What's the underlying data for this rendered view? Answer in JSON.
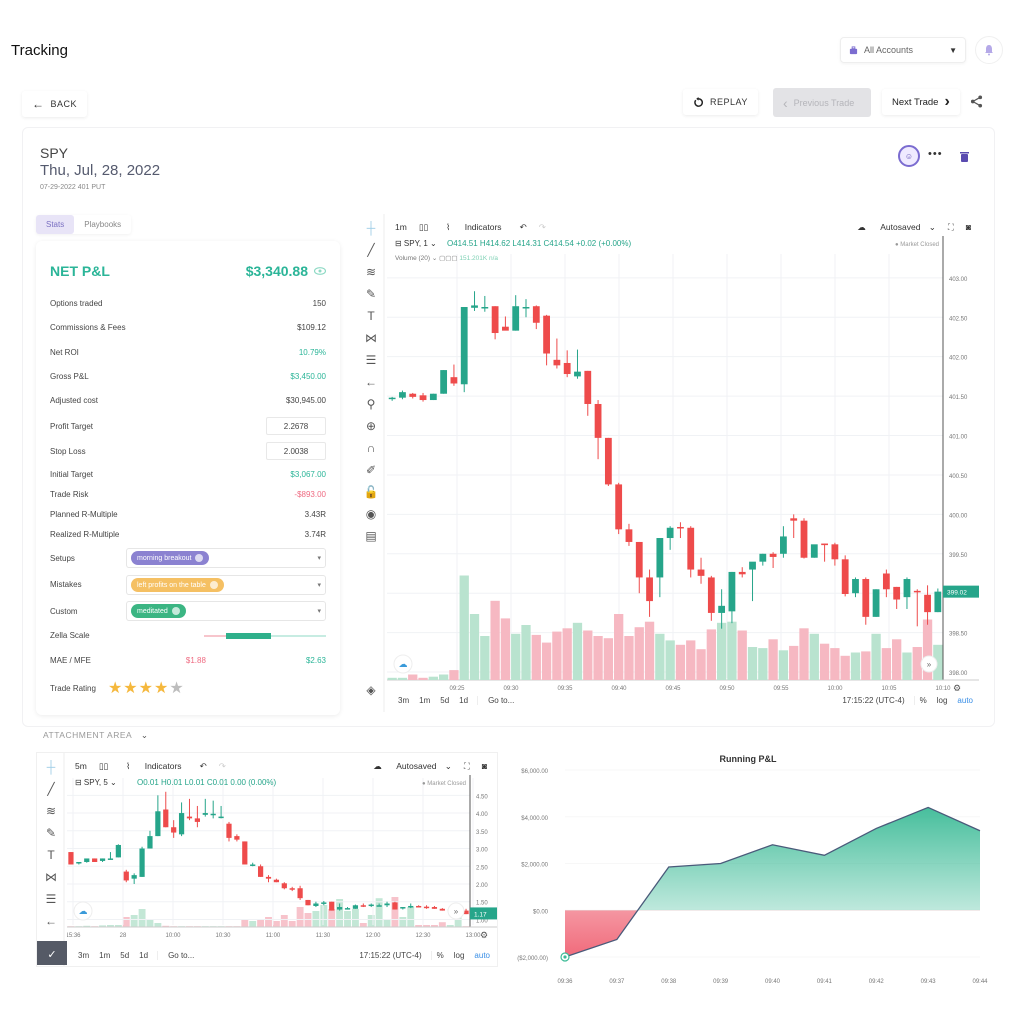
{
  "header": {
    "title": "Tracking",
    "account_select": {
      "value": "All Accounts",
      "icon": "briefcase-icon"
    },
    "notification_icon": "bell-icon"
  },
  "nav": {
    "back_label": "BACK",
    "replay_label": "REPLAY",
    "previous_label": "Previous Trade",
    "next_label": "Next Trade",
    "share_icon": "share-icon"
  },
  "trade": {
    "symbol": "SPY",
    "date": "Thu, Jul, 28, 2022",
    "contract": "07-29-2022 401 PUT"
  },
  "tabs": [
    {
      "label": "Stats",
      "active": true
    },
    {
      "label": "Playbooks",
      "active": false
    }
  ],
  "stats": {
    "net_pl_label": "NET P&L",
    "net_pl_value": "$3,340.88",
    "rows": [
      {
        "label": "Options traded",
        "value": "150",
        "tone": ""
      },
      {
        "label": "Commissions & Fees",
        "value": "$109.12",
        "tone": ""
      },
      {
        "label": "Net ROI",
        "value": "10.79%",
        "tone": "pos"
      },
      {
        "label": "Gross P&L",
        "value": "$3,450.00",
        "tone": "pos"
      },
      {
        "label": "Adjusted cost",
        "value": "$30,945.00",
        "tone": ""
      }
    ],
    "profit_target": {
      "label": "Profit Target",
      "value": "2.2678"
    },
    "stop_loss": {
      "label": "Stop Loss",
      "value": "2.0038"
    },
    "rows2": [
      {
        "label": "Initial Target",
        "value": "$3,067.00",
        "tone": "pos"
      },
      {
        "label": "Trade Risk",
        "value": "-$893.00",
        "tone": "neg"
      },
      {
        "label": "Planned R-Multiple",
        "value": "3.43R",
        "tone": ""
      },
      {
        "label": "Realized R-Multiple",
        "value": "3.74R",
        "tone": ""
      }
    ],
    "setups": {
      "label": "Setups",
      "tag": "morning breakout",
      "color": "#8b82d1"
    },
    "mistakes": {
      "label": "Mistakes",
      "tag": "left profits on the table",
      "color": "#f5c063"
    },
    "custom": {
      "label": "Custom",
      "tag": "meditated",
      "color": "#3bb583"
    },
    "zella_scale_label": "Zella Scale",
    "mae_mfe": {
      "label": "MAE / MFE",
      "mae": "$1.88",
      "mfe": "$2.63"
    },
    "trade_rating": {
      "label": "Trade Rating",
      "stars": 4,
      "max": 5
    }
  },
  "main_chart": {
    "interval": "1m",
    "indicators_label": "Indicators",
    "autosaved_label": "Autosaved",
    "legend_symbol": "SPY, 1",
    "ohlc": "O414.51  H414.62  L414.31  C414.54  +0.02 (+0.00%)",
    "volume_label": "Volume (20)",
    "volume_value": "151.201K  n/a",
    "market_status": "Market Closed",
    "price_label": "399.02",
    "y_ticks": [
      "403.00",
      "402.50",
      "402.00",
      "401.50",
      "401.00",
      "400.50",
      "400.00",
      "399.50",
      "399.00",
      "398.50",
      "398.00"
    ],
    "x_ticks": [
      "09:25",
      "09:30",
      "09:35",
      "09:40",
      "09:45",
      "09:50",
      "09:55",
      "10:00",
      "10:05",
      "10:10",
      "10"
    ],
    "ranges": [
      "3m",
      "1m",
      "5d",
      "1d"
    ],
    "goto_label": "Go to...",
    "time": "17:15:22 (UTC-4)",
    "pct": "%",
    "log": "log",
    "auto": "auto",
    "candles": [
      [
        401.47,
        401.49,
        401.44,
        401.48
      ],
      [
        401.48,
        401.57,
        401.46,
        401.55
      ],
      [
        401.53,
        401.54,
        401.47,
        401.49
      ],
      [
        401.51,
        401.54,
        401.43,
        401.45
      ],
      [
        401.45,
        401.53,
        401.45,
        401.53
      ],
      [
        401.53,
        401.83,
        401.53,
        401.83
      ],
      [
        401.74,
        401.9,
        401.63,
        401.66
      ],
      [
        401.65,
        402.62,
        401.55,
        402.63
      ],
      [
        402.62,
        402.83,
        402.58,
        402.65
      ],
      [
        402.63,
        402.77,
        402.57,
        402.63
      ],
      [
        402.64,
        402.64,
        402.22,
        402.3
      ],
      [
        402.38,
        402.51,
        402.34,
        402.33
      ],
      [
        402.33,
        402.78,
        402.33,
        402.64
      ],
      [
        402.63,
        402.73,
        402.5,
        402.63
      ],
      [
        402.64,
        402.65,
        402.35,
        402.43
      ],
      [
        402.52,
        402.53,
        401.89,
        402.04
      ],
      [
        401.96,
        402.23,
        401.85,
        401.89
      ],
      [
        401.92,
        402.08,
        401.74,
        401.78
      ],
      [
        401.75,
        402.09,
        401.72,
        401.81
      ],
      [
        401.82,
        401.82,
        401.25,
        401.4
      ],
      [
        401.4,
        401.45,
        400.7,
        400.97
      ],
      [
        400.97,
        400.97,
        400.36,
        400.38
      ],
      [
        400.38,
        400.4,
        399.75,
        399.81
      ],
      [
        399.81,
        399.88,
        399.6,
        399.65
      ],
      [
        399.65,
        399.65,
        399.0,
        399.2
      ],
      [
        399.2,
        399.3,
        398.7,
        398.9
      ],
      [
        399.2,
        399.45,
        398.95,
        399.7
      ],
      [
        399.7,
        399.85,
        399.55,
        399.83
      ],
      [
        399.84,
        399.9,
        399.7,
        399.83
      ],
      [
        399.83,
        399.85,
        399.2,
        399.3
      ],
      [
        399.3,
        399.45,
        399.12,
        399.22
      ],
      [
        399.2,
        399.22,
        398.65,
        398.75
      ],
      [
        398.75,
        399.05,
        398.55,
        398.84
      ],
      [
        398.77,
        399.27,
        398.62,
        399.27
      ],
      [
        399.27,
        399.33,
        399.2,
        399.24
      ],
      [
        399.3,
        399.39,
        398.9,
        399.4
      ],
      [
        399.4,
        399.5,
        399.35,
        399.5
      ],
      [
        399.5,
        399.52,
        399.32,
        399.46
      ],
      [
        399.5,
        399.85,
        399.45,
        399.72
      ],
      [
        399.95,
        400.0,
        399.7,
        399.92
      ],
      [
        399.92,
        399.95,
        399.44,
        399.45
      ],
      [
        399.45,
        399.6,
        399.45,
        399.62
      ],
      [
        399.63,
        399.63,
        399.4,
        399.61
      ],
      [
        399.62,
        399.64,
        399.35,
        399.43
      ],
      [
        399.43,
        399.48,
        398.96,
        398.99
      ],
      [
        399.0,
        399.2,
        398.95,
        399.18
      ],
      [
        399.18,
        399.2,
        398.6,
        398.7
      ],
      [
        398.7,
        399.05,
        398.7,
        399.05
      ],
      [
        399.25,
        399.3,
        398.95,
        399.05
      ],
      [
        399.08,
        399.08,
        398.8,
        398.92
      ],
      [
        398.95,
        399.2,
        398.8,
        399.18
      ],
      [
        399.03,
        399.05,
        398.58,
        399.02
      ],
      [
        398.98,
        399.1,
        398.6,
        398.76
      ],
      [
        398.76,
        399.06,
        398.76,
        399.02
      ]
    ],
    "volumes": [
      0.02,
      0.02,
      0.05,
      0.02,
      0.03,
      0.05,
      0.09,
      0.95,
      0.6,
      0.4,
      0.72,
      0.56,
      0.42,
      0.5,
      0.41,
      0.34,
      0.44,
      0.47,
      0.52,
      0.45,
      0.4,
      0.38,
      0.6,
      0.4,
      0.48,
      0.53,
      0.42,
      0.36,
      0.32,
      0.36,
      0.28,
      0.46,
      0.52,
      0.53,
      0.45,
      0.3,
      0.29,
      0.37,
      0.27,
      0.31,
      0.47,
      0.42,
      0.33,
      0.29,
      0.22,
      0.25,
      0.26,
      0.42,
      0.29,
      0.37,
      0.25,
      0.3,
      0.55,
      0.32
    ]
  },
  "attachment": {
    "label": "ATTACHMENT AREA"
  },
  "small_chart": {
    "interval": "5m",
    "indicators_label": "Indicators",
    "autosaved_label": "Autosaved",
    "legend_symbol": "SPY, 5",
    "ohlc": "O0.01  H0.01  L0.01  C0.01  0.00 (0.00%)",
    "market_status": "Market Closed",
    "price_label": "1.17",
    "y_ticks": [
      "4.50",
      "4.00",
      "3.50",
      "3.00",
      "2.50",
      "2.00",
      "1.50",
      "1.00"
    ],
    "x_ticks": [
      "15:36",
      "28",
      "10:00",
      "10:30",
      "11:00",
      "11:30",
      "12:00",
      "12:30",
      "13:00"
    ],
    "ranges": [
      "3m",
      "1m",
      "5d",
      "1d"
    ],
    "goto_label": "Go to...",
    "time": "17:15:22 (UTC-4)",
    "pct": "%",
    "log": "log",
    "auto": "auto",
    "candles": [
      [
        2.9,
        2.9,
        2.55,
        2.55
      ],
      [
        2.6,
        2.6,
        2.55,
        2.62
      ],
      [
        2.62,
        2.7,
        2.6,
        2.72
      ],
      [
        2.72,
        2.72,
        2.62,
        2.62
      ],
      [
        2.65,
        2.72,
        2.62,
        2.72
      ],
      [
        2.72,
        2.9,
        2.7,
        2.72
      ],
      [
        2.75,
        3.12,
        2.75,
        3.1
      ],
      [
        2.35,
        2.4,
        2.05,
        2.1
      ],
      [
        2.15,
        2.3,
        2.0,
        2.25
      ],
      [
        2.2,
        3.05,
        2.2,
        3.0
      ],
      [
        3.0,
        3.5,
        3.0,
        3.35
      ],
      [
        3.35,
        4.5,
        3.35,
        4.05
      ],
      [
        4.1,
        4.6,
        3.6,
        3.6
      ],
      [
        3.6,
        3.8,
        3.3,
        3.45
      ],
      [
        3.4,
        4.3,
        3.35,
        4.0
      ],
      [
        3.9,
        4.4,
        3.8,
        3.85
      ],
      [
        3.85,
        4.2,
        3.6,
        3.75
      ],
      [
        3.95,
        4.4,
        3.9,
        4.0
      ],
      [
        3.95,
        4.35,
        3.85,
        3.98
      ],
      [
        3.9,
        4.2,
        3.85,
        3.9
      ],
      [
        3.7,
        3.75,
        3.2,
        3.3
      ],
      [
        3.35,
        3.4,
        3.2,
        3.25
      ],
      [
        3.2,
        3.2,
        2.55,
        2.55
      ],
      [
        2.55,
        2.6,
        2.5,
        2.55
      ],
      [
        2.5,
        2.55,
        2.2,
        2.2
      ],
      [
        2.2,
        2.25,
        2.05,
        2.15
      ],
      [
        2.12,
        2.15,
        2.05,
        2.05
      ],
      [
        2.02,
        2.05,
        1.85,
        1.88
      ],
      [
        1.88,
        1.92,
        1.8,
        1.85
      ],
      [
        1.88,
        1.95,
        1.55,
        1.6
      ],
      [
        1.55,
        1.55,
        1.4,
        1.4
      ],
      [
        1.38,
        1.5,
        1.35,
        1.45
      ],
      [
        1.45,
        1.52,
        1.4,
        1.48
      ],
      [
        1.5,
        1.5,
        1.25,
        1.25
      ],
      [
        1.28,
        1.45,
        1.25,
        1.35
      ],
      [
        1.32,
        1.35,
        1.28,
        1.32
      ],
      [
        1.3,
        1.42,
        1.3,
        1.4
      ],
      [
        1.4,
        1.45,
        1.35,
        1.38
      ],
      [
        1.38,
        1.45,
        1.35,
        1.42
      ],
      [
        1.4,
        1.45,
        1.38,
        1.4
      ],
      [
        1.4,
        1.5,
        1.35,
        1.45
      ],
      [
        1.48,
        1.5,
        1.28,
        1.28
      ],
      [
        1.32,
        1.35,
        1.28,
        1.35
      ],
      [
        1.35,
        1.45,
        1.32,
        1.38
      ],
      [
        1.38,
        1.4,
        1.35,
        1.36
      ],
      [
        1.36,
        1.4,
        1.3,
        1.35
      ],
      [
        1.35,
        1.38,
        1.3,
        1.3
      ],
      [
        1.3,
        1.32,
        1.25,
        1.25
      ],
      [
        1.25,
        1.3,
        1.22,
        1.28
      ],
      [
        1.28,
        1.35,
        1.25,
        1.3
      ],
      [
        1.25,
        1.3,
        1.15,
        1.15
      ]
    ]
  },
  "running_pl": {
    "title": "Running P&L"
  },
  "chart_data": {
    "type": "area",
    "title": "Running P&L",
    "categories": [
      "09:36",
      "09:37",
      "09:38",
      "09:39",
      "09:40",
      "09:41",
      "09:42",
      "09:43",
      "09:44"
    ],
    "values": [
      -2000,
      -1250,
      1850,
      2000,
      2800,
      2350,
      3500,
      4400,
      3400
    ],
    "y_ticks": [
      "$6,000.00",
      "$4,000.00",
      "$2,000.00",
      "$0.00",
      "($2,000.00)"
    ],
    "ylim": [
      -2000,
      6000
    ],
    "xlabel": "",
    "ylabel": "",
    "colors": {
      "positive": "#3dbb97",
      "negative": "#ef5a6c",
      "line": "#4a5a7a"
    }
  }
}
